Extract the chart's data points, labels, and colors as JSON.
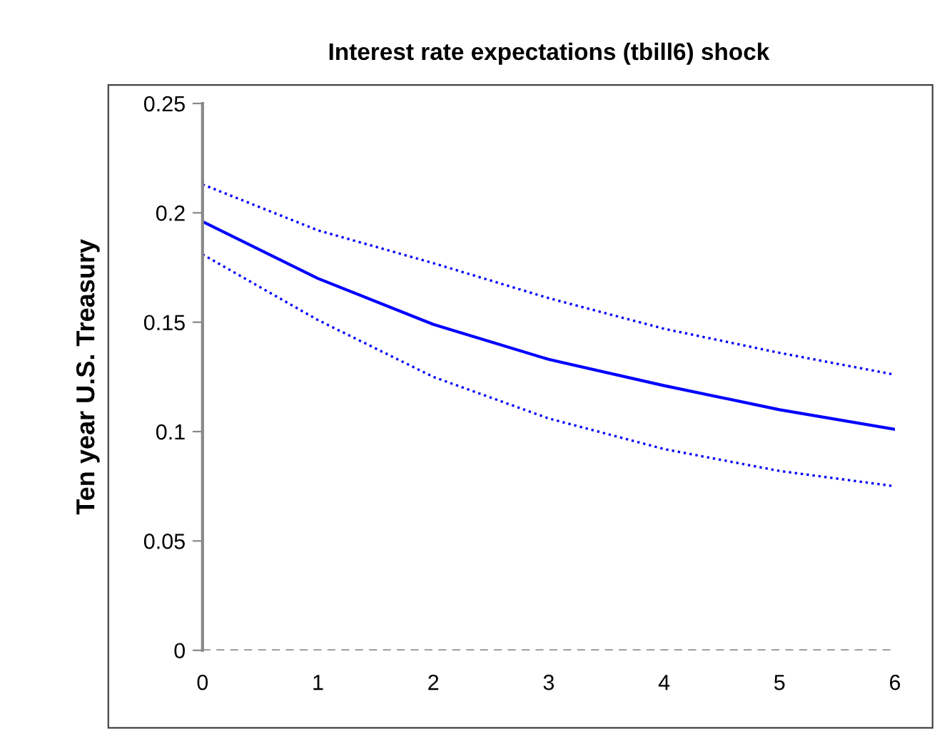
{
  "chart_data": {
    "type": "line",
    "title": "Interest rate expectations (tbill6) shock",
    "ylabel": "Ten year U.S. Treasury",
    "x": [
      0,
      1,
      2,
      3,
      4,
      5,
      6
    ],
    "series": [
      {
        "color": "#0000ff",
        "line_style": "solid",
        "values": [
          0.196,
          0.17,
          0.149,
          0.133,
          0.121,
          0.11,
          0.101
        ]
      },
      {
        "color": "#0000ff",
        "line_style": "dotted",
        "values": [
          0.213,
          0.192,
          0.177,
          0.161,
          0.147,
          0.136,
          0.126
        ]
      },
      {
        "color": "#0000ff",
        "line_style": "dotted",
        "values": [
          0.181,
          0.151,
          0.125,
          0.106,
          0.092,
          0.082,
          0.075
        ]
      }
    ],
    "xlim": [
      0,
      6
    ],
    "xticks": [
      0,
      1,
      2,
      3,
      4,
      5,
      6
    ],
    "ylim": [
      0,
      0.25
    ],
    "yticks": [
      0,
      0.05,
      0.1,
      0.15,
      0.2,
      0.25
    ],
    "ref_lines": [
      {
        "axis": "y",
        "value": 0,
        "color": "#808080",
        "line_style": "dashed"
      }
    ],
    "grid": false,
    "legend": false,
    "marker": "none"
  }
}
